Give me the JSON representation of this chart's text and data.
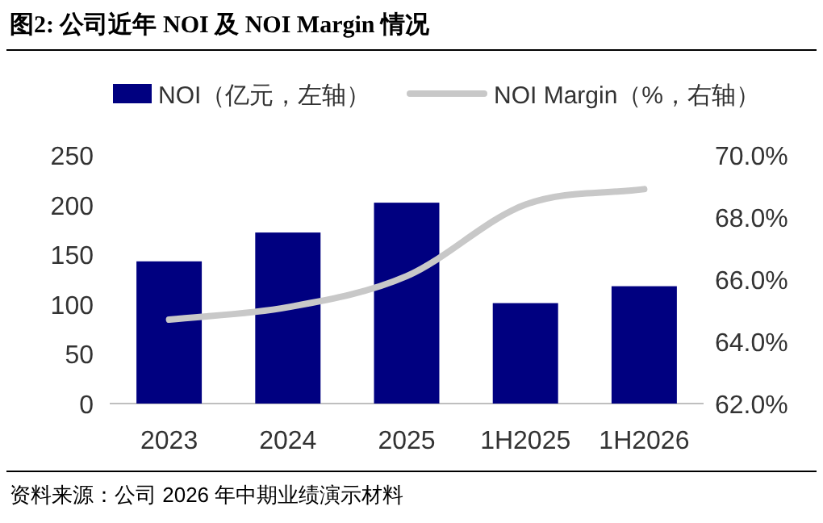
{
  "chart_data": {
    "type": "bar",
    "title": "图2:  公司近年 NOI 及 NOI Margin 情况",
    "categories": [
      "2023",
      "2024",
      "2025",
      "1H2025",
      "1H2026"
    ],
    "series": [
      {
        "name": "NOI（亿元，左轴）",
        "color": "#000080",
        "values": [
          143,
          172,
          202,
          101,
          118
        ]
      },
      {
        "name": "NOI Margin（%，右轴）",
        "type": "line",
        "axis": "y2",
        "color": "#c8c8c8",
        "values": [
          64.7,
          65.1,
          66.1,
          68.4,
          68.9
        ]
      }
    ],
    "ylim": [
      0,
      250
    ],
    "yticks": [
      0,
      50,
      100,
      150,
      200,
      250
    ],
    "y2lim": [
      62,
      70
    ],
    "y2ticks": [
      {
        "value": 62,
        "label": "62.0%"
      },
      {
        "value": 64,
        "label": "64.0%"
      },
      {
        "value": 66,
        "label": "66.0%"
      },
      {
        "value": 68,
        "label": "68.0%"
      },
      {
        "value": 70,
        "label": "70.0%"
      }
    ],
    "legend": "top",
    "grid": false,
    "annotations": [
      "资料来源：公司 2026 年中期业绩演示材料"
    ]
  }
}
